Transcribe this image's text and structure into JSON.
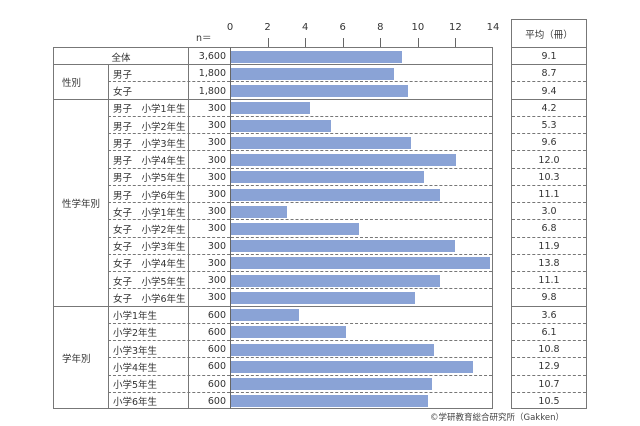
{
  "chart_data": {
    "type": "bar",
    "orientation": "horizontal",
    "title": "",
    "xlabel": "",
    "ylabel": "",
    "xlim": [
      0,
      14
    ],
    "x_ticks": [
      0,
      2,
      4,
      6,
      8,
      10,
      12,
      14
    ],
    "n_header": "n＝",
    "avg_header": "平均（冊）",
    "groups": [
      {
        "name": "",
        "rows": [
          0
        ]
      },
      {
        "name": "性別",
        "rows": [
          1,
          2
        ]
      },
      {
        "name": "性学年別",
        "rows": [
          3,
          4,
          5,
          6,
          7,
          8,
          9,
          10,
          11,
          12,
          13,
          14
        ]
      },
      {
        "name": "学年別",
        "rows": [
          15,
          16,
          17,
          18,
          19,
          20
        ]
      }
    ],
    "categories": [
      "全体",
      "男子",
      "女子",
      "男子　小学1年生",
      "男子　小学2年生",
      "男子　小学3年生",
      "男子　小学4年生",
      "男子　小学5年生",
      "男子　小学6年生",
      "女子　小学1年生",
      "女子　小学2年生",
      "女子　小学3年生",
      "女子　小学4年生",
      "女子　小学5年生",
      "女子　小学6年生",
      "小学1年生",
      "小学2年生",
      "小学3年生",
      "小学4年生",
      "小学5年生",
      "小学6年生"
    ],
    "n": [
      "3,600",
      "1,800",
      "1,800",
      "300",
      "300",
      "300",
      "300",
      "300",
      "300",
      "300",
      "300",
      "300",
      "300",
      "300",
      "300",
      "600",
      "600",
      "600",
      "600",
      "600",
      "600"
    ],
    "values": [
      9.1,
      8.7,
      9.4,
      4.2,
      5.3,
      9.6,
      12.0,
      10.3,
      11.1,
      3.0,
      6.8,
      11.9,
      13.8,
      11.1,
      9.8,
      3.6,
      6.1,
      10.8,
      12.9,
      10.7,
      10.5
    ],
    "value_labels": [
      "9.1",
      "8.7",
      "9.4",
      "4.2",
      "5.3",
      "9.6",
      "12.0",
      "10.3",
      "11.1",
      "3.0",
      "6.8",
      "11.9",
      "13.8",
      "11.1",
      "9.8",
      "3.6",
      "6.1",
      "10.8",
      "12.9",
      "10.7",
      "10.5"
    ],
    "bar_color": "#8aa3d6",
    "grid": false,
    "legend": "none"
  },
  "credit": "©学研教育総合研究所（Gakken）"
}
